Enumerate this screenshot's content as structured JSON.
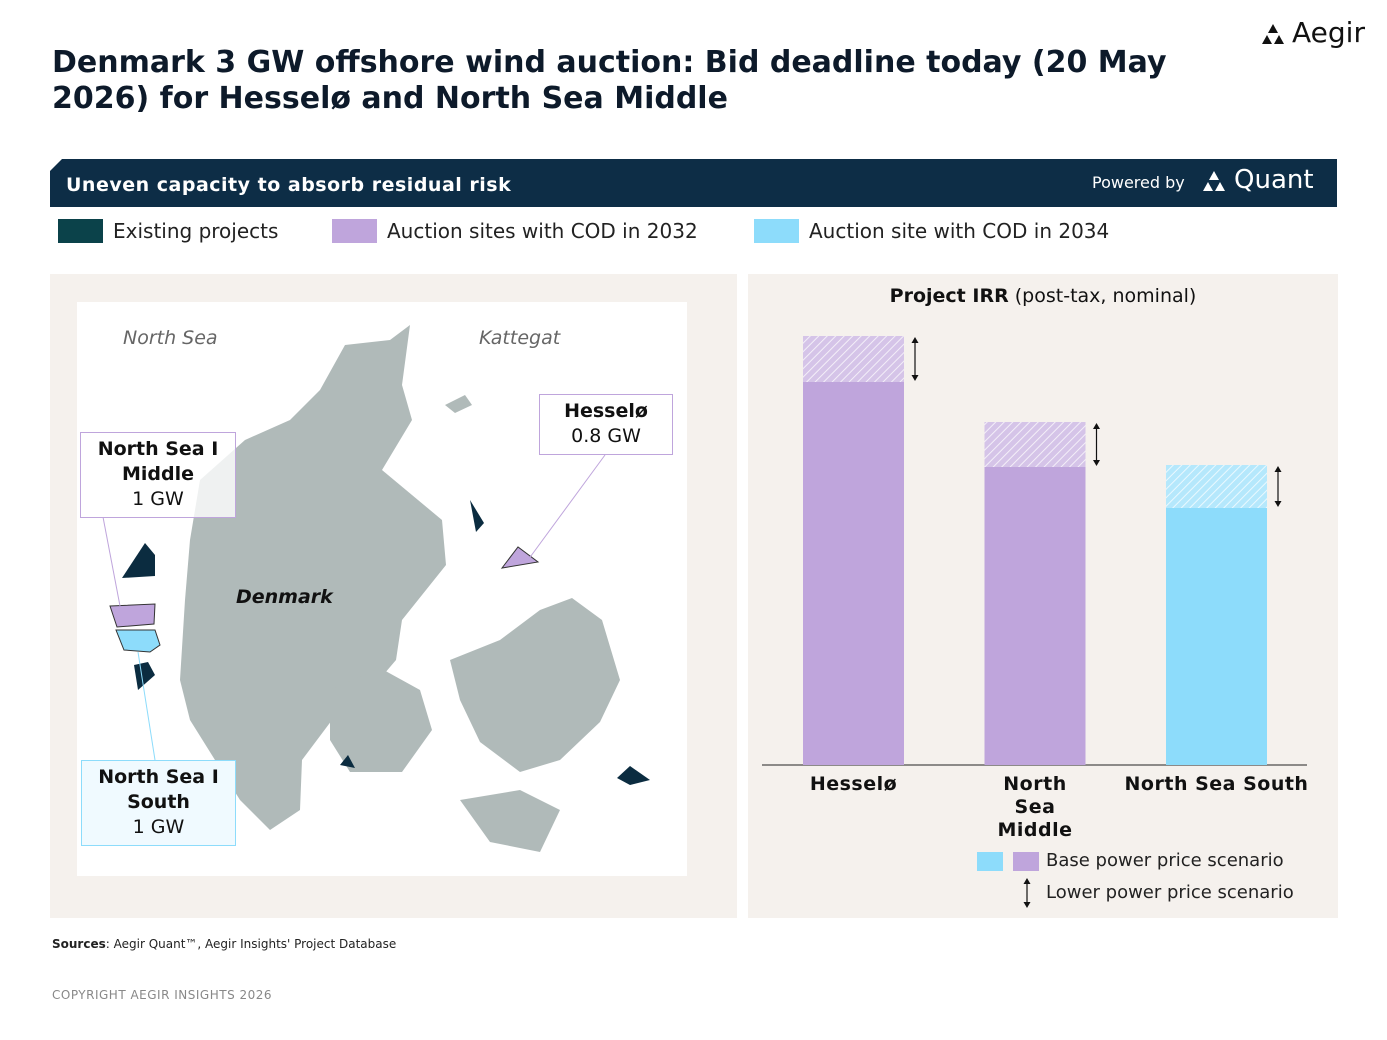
{
  "header": {
    "title": "Denmark 3 GW offshore wind auction: Bid deadline today (20 May 2026) for Hesselø and North Sea Middle",
    "logo": "Aegir"
  },
  "banner": {
    "title": "Uneven capacity to absorb residual risk",
    "powered_by": "Powered by",
    "brand": "Quant"
  },
  "legend": [
    {
      "label": "Existing projects",
      "color": "#0b424a"
    },
    {
      "label": "Auction sites with COD in 2032",
      "color": "#bfa5dc"
    },
    {
      "label": "Auction site with COD in 2034",
      "color": "#8ddcfb"
    }
  ],
  "map": {
    "labels": [
      "North Sea",
      "Kattegat",
      "Denmark"
    ],
    "sites": [
      {
        "name": "Hesselø",
        "capacity": "0.8 GW"
      },
      {
        "name": "North Sea I Middle",
        "capacity": "1 GW"
      },
      {
        "name": "North Sea I South",
        "capacity": "1 GW"
      }
    ]
  },
  "chart_data": {
    "type": "bar",
    "title": "Project IRR",
    "subtitle": "(post-tax, nominal)",
    "categories": [
      "Hesselø",
      "North Sea Middle",
      "North Sea South"
    ],
    "series": [
      {
        "name": "Base power price scenario",
        "colors": [
          "#bfa5dc",
          "#bfa5dc",
          "#8ddcfb"
        ],
        "values": [
          4.29,
          3.43,
          3.0
        ]
      },
      {
        "name": "Lower power price scenario",
        "values": [
          3.83,
          2.98,
          2.57
        ]
      }
    ]
  },
  "sources": {
    "label": "Sources",
    "text": ": Aegir Quant™, Aegir Insights' Project Database"
  },
  "copyright": "COPYRIGHT AEGIR INSIGHTS 2026"
}
